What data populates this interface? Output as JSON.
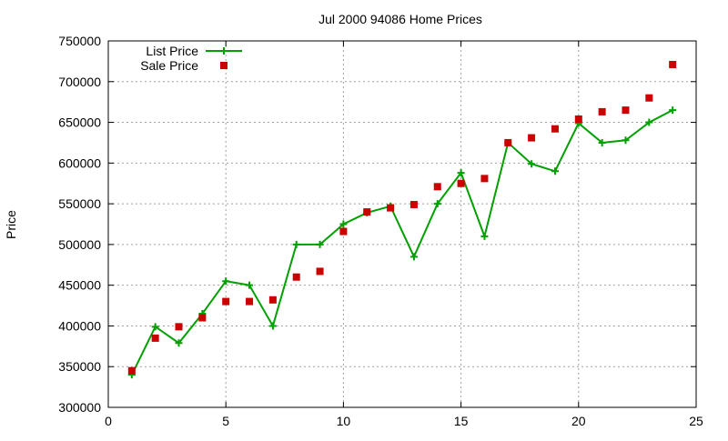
{
  "chart_data": {
    "type": "line",
    "title": "Jul 2000 94086 Home Prices",
    "xlabel": "",
    "ylabel": "Price",
    "xlim": [
      0,
      25
    ],
    "ylim": [
      300000,
      750000
    ],
    "xticks": [
      0,
      5,
      10,
      15,
      20,
      25
    ],
    "yticks": [
      300000,
      350000,
      400000,
      450000,
      500000,
      550000,
      600000,
      650000,
      700000,
      750000
    ],
    "grid": true,
    "legend_position": "top-left",
    "x": [
      1,
      2,
      3,
      4,
      5,
      6,
      7,
      8,
      9,
      10,
      11,
      12,
      13,
      14,
      15,
      16,
      17,
      18,
      19,
      20,
      21,
      22,
      23,
      24
    ],
    "series": [
      {
        "name": "List Price",
        "style": "linespoints",
        "marker": "plus",
        "color": "#00a000",
        "values": [
          340000,
          399000,
          379000,
          415000,
          455000,
          450000,
          400000,
          500000,
          500000,
          525000,
          539000,
          547000,
          485000,
          550000,
          588000,
          510000,
          625000,
          599000,
          590000,
          649000,
          625000,
          628000,
          650000,
          665000
        ]
      },
      {
        "name": "Sale Price",
        "style": "points",
        "marker": "square",
        "color": "#cc0000",
        "values": [
          345000,
          385000,
          399000,
          410000,
          430000,
          430000,
          432000,
          460000,
          467000,
          516000,
          540000,
          545000,
          549000,
          571000,
          575000,
          581000,
          625000,
          631000,
          642000,
          654000,
          663000,
          665000,
          680000,
          721000
        ]
      }
    ]
  }
}
